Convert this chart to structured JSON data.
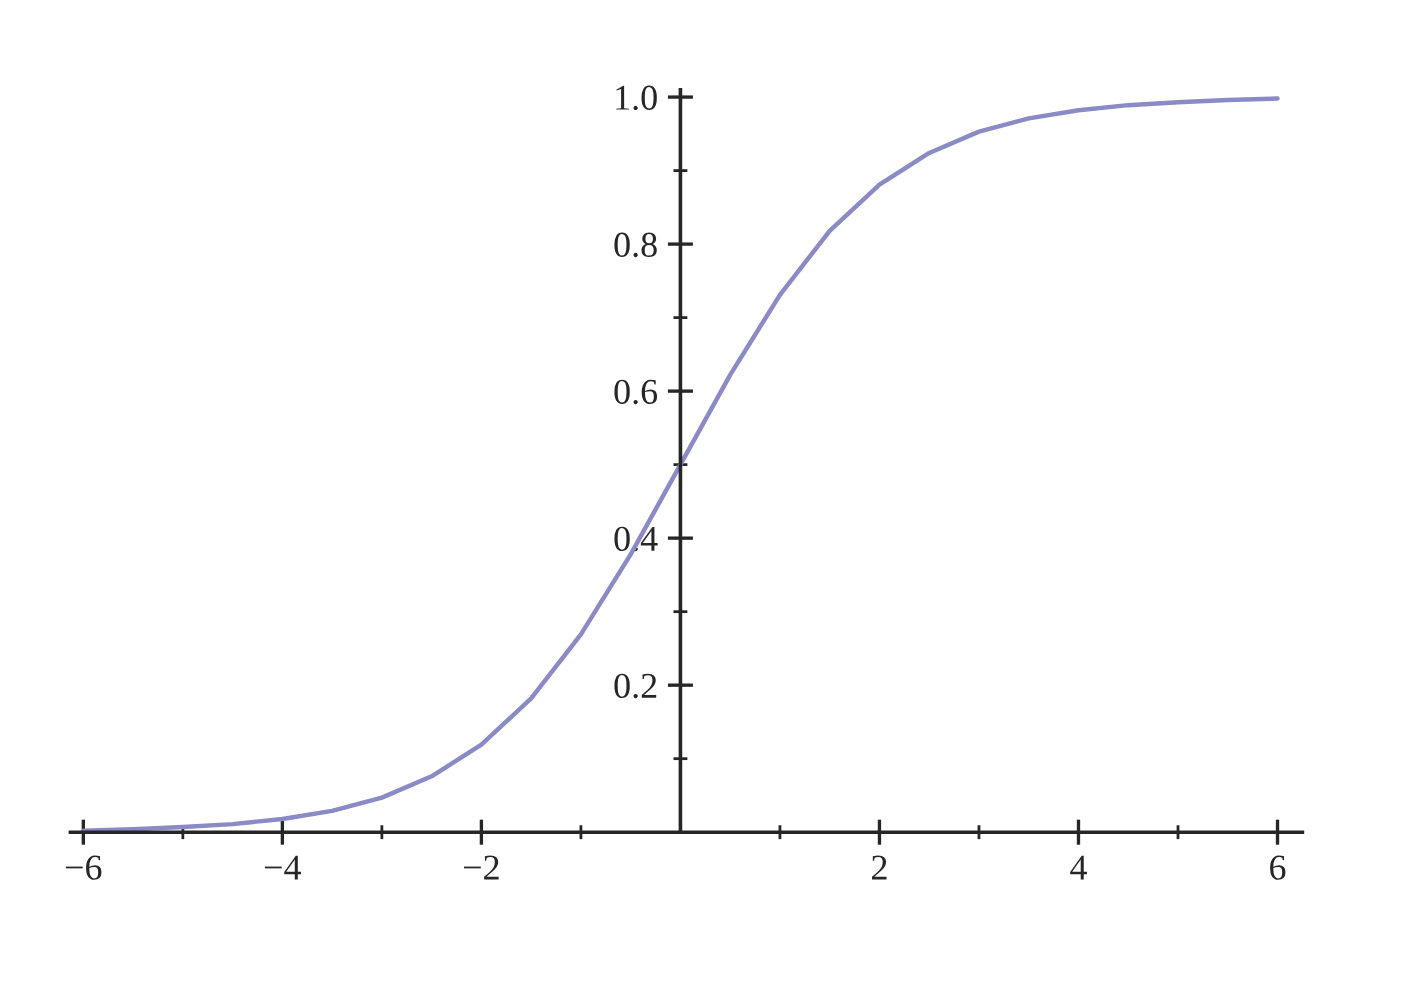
{
  "chart_data": {
    "type": "line",
    "x": [
      -6,
      -5.5,
      -5,
      -4.5,
      -4,
      -3.5,
      -3,
      -2.5,
      -2,
      -1.5,
      -1,
      -0.5,
      0,
      0.5,
      1,
      1.5,
      2,
      2.5,
      3,
      3.5,
      4,
      4.5,
      5,
      5.5,
      6
    ],
    "series": [
      {
        "color": "#8a8ac6",
        "values": [
          0.002,
          0.004,
          0.007,
          0.011,
          0.018,
          0.029,
          0.047,
          0.076,
          0.119,
          0.182,
          0.269,
          0.378,
          0.5,
          0.622,
          0.731,
          0.818,
          0.881,
          0.924,
          0.953,
          0.971,
          0.982,
          0.989,
          0.993,
          0.996,
          0.998
        ]
      }
    ],
    "xlim": [
      -6.13,
      6.25
    ],
    "ylim": [
      0,
      1.01
    ],
    "xticks": [
      {
        "value": -6,
        "label": "−6"
      },
      {
        "value": -5,
        "label": null
      },
      {
        "value": -4,
        "label": "−4"
      },
      {
        "value": -3,
        "label": null
      },
      {
        "value": -2,
        "label": "−2"
      },
      {
        "value": -1,
        "label": null
      },
      {
        "value": 1,
        "label": null
      },
      {
        "value": 2,
        "label": "2"
      },
      {
        "value": 3,
        "label": null
      },
      {
        "value": 4,
        "label": "4"
      },
      {
        "value": 5,
        "label": null
      },
      {
        "value": 6,
        "label": "6"
      }
    ],
    "yticks": [
      {
        "value": 0.1,
        "label": null
      },
      {
        "value": 0.2,
        "label": "0.2"
      },
      {
        "value": 0.3,
        "label": null
      },
      {
        "value": 0.4,
        "label": "0.4"
      },
      {
        "value": 0.5,
        "label": null
      },
      {
        "value": 0.6,
        "label": "0.6"
      },
      {
        "value": 0.7,
        "label": null
      },
      {
        "value": 0.8,
        "label": "0.8"
      },
      {
        "value": 0.9,
        "label": null
      },
      {
        "value": 1.0,
        "label": "1.0"
      }
    ],
    "grid": false,
    "marker": "none",
    "line_style": "solid"
  }
}
